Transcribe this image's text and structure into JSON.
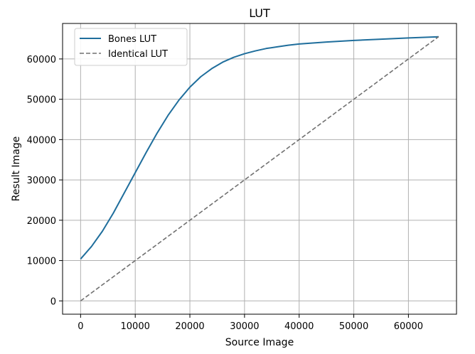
{
  "chart_data": {
    "type": "line",
    "title": "LUT",
    "xlabel": "Source Image",
    "ylabel": "Result Image",
    "xlim": [
      -3300,
      68800
    ],
    "ylim": [
      -3300,
      68800
    ],
    "xticks": [
      0,
      10000,
      20000,
      30000,
      40000,
      50000,
      60000
    ],
    "yticks": [
      0,
      10000,
      20000,
      30000,
      40000,
      50000,
      60000
    ],
    "grid": true,
    "legend_position": "top-left",
    "series": [
      {
        "name": "Bones LUT",
        "color": "#1f6e9c",
        "style": "solid",
        "x": [
          0,
          2000,
          4000,
          6000,
          8000,
          10000,
          12000,
          14000,
          16000,
          18000,
          20000,
          22000,
          24000,
          26000,
          28000,
          30000,
          32000,
          34000,
          36000,
          38000,
          40000,
          45000,
          50000,
          55000,
          60000,
          65535
        ],
        "y": [
          10400,
          13500,
          17300,
          21800,
          26800,
          31800,
          36800,
          41600,
          46000,
          49800,
          53000,
          55600,
          57600,
          59200,
          60400,
          61300,
          62000,
          62600,
          63000,
          63400,
          63700,
          64200,
          64600,
          64900,
          65200,
          65500
        ]
      },
      {
        "name": "Identical LUT",
        "color": "#707070",
        "style": "dashed",
        "x": [
          0,
          65535
        ],
        "y": [
          0,
          65535
        ]
      }
    ]
  }
}
